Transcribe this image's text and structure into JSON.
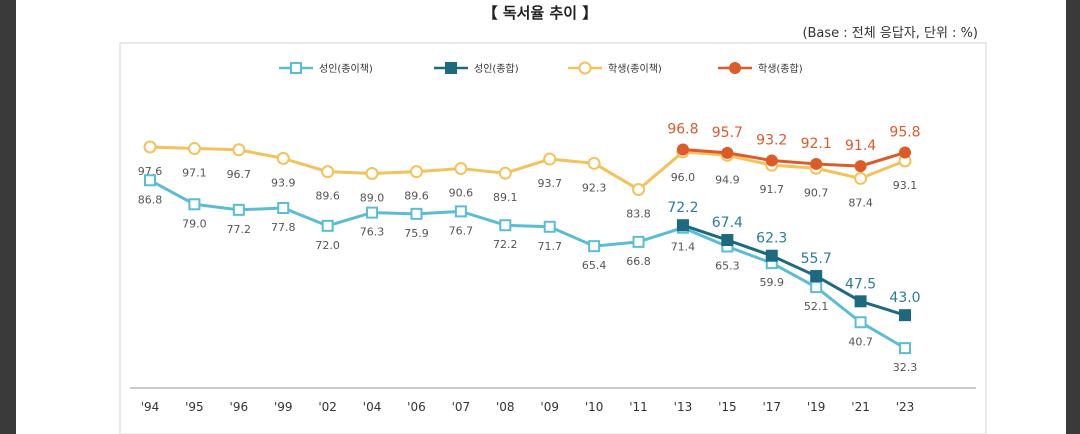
{
  "title": "【 독서율 추이 】",
  "subtitle": "(Base : 전체 응답자, 단위 : %)",
  "chart_data": {
    "type": "line",
    "title": "【 독서율 추이 】",
    "subtitle": "(Base : 전체 응답자, 단위 : %)",
    "xlabel": "",
    "ylabel": "",
    "ylim": [
      25,
      100
    ],
    "grid": false,
    "legend": "top",
    "categories": [
      "'94",
      "'95",
      "'96",
      "'99",
      "'02",
      "'04",
      "'06",
      "'07",
      "'08",
      "'09",
      "'10",
      "'11",
      "'13",
      "'15",
      "'17",
      "'19",
      "'21",
      "'23"
    ],
    "series": [
      {
        "name": "성인(종이책)",
        "color": "#5bbcd5",
        "marker": "open-square",
        "values": [
          86.8,
          79.0,
          77.2,
          77.8,
          72.0,
          76.3,
          75.9,
          76.7,
          72.2,
          71.7,
          65.4,
          66.8,
          71.4,
          65.3,
          59.9,
          52.1,
          40.7,
          32.3
        ],
        "labels": [
          "86.8",
          "79.0",
          "77.2",
          "77.8",
          "72.0",
          "76.3",
          "75.9",
          "76.7",
          "72.2",
          "71.7",
          "65.4",
          "66.8",
          "71.4",
          "65.3",
          "59.9",
          "52.1",
          "40.7",
          "32.3"
        ]
      },
      {
        "name": "성인(종합)",
        "color": "#1d6a80",
        "marker": "filled-square",
        "values": [
          null,
          null,
          null,
          null,
          null,
          null,
          null,
          null,
          null,
          null,
          null,
          null,
          72.2,
          67.4,
          62.3,
          55.7,
          47.5,
          43.0
        ],
        "labels": [
          "",
          "",
          "",
          "",
          "",
          "",
          "",
          "",
          "",
          "",
          "",
          "",
          "72.2",
          "67.4",
          "62.3",
          "55.7",
          "47.5",
          "43.0"
        ]
      },
      {
        "name": "학생(종이책)",
        "color": "#f2c25b",
        "marker": "open-circle",
        "values": [
          97.6,
          97.1,
          96.7,
          93.9,
          89.6,
          89.0,
          89.6,
          90.6,
          89.1,
          93.7,
          92.3,
          83.8,
          96.0,
          94.9,
          91.7,
          90.7,
          87.4,
          93.1
        ],
        "labels": [
          "97.6",
          "97.1",
          "96.7",
          "93.9",
          "89.6",
          "89.0",
          "89.6",
          "90.6",
          "89.1",
          "93.7",
          "92.3",
          "83.8",
          "96.0",
          "94.9",
          "91.7",
          "90.7",
          "87.4",
          "93.1"
        ]
      },
      {
        "name": "학생(종합)",
        "color": "#dd5a2a",
        "marker": "filled-circle",
        "values": [
          null,
          null,
          null,
          null,
          null,
          null,
          null,
          null,
          null,
          null,
          null,
          null,
          96.8,
          95.7,
          93.2,
          92.1,
          91.4,
          95.8
        ],
        "labels": [
          "",
          "",
          "",
          "",
          "",
          "",
          "",
          "",
          "",
          "",
          "",
          "",
          "96.8",
          "95.7",
          "93.2",
          "92.1",
          "91.4",
          "95.8"
        ]
      }
    ]
  }
}
